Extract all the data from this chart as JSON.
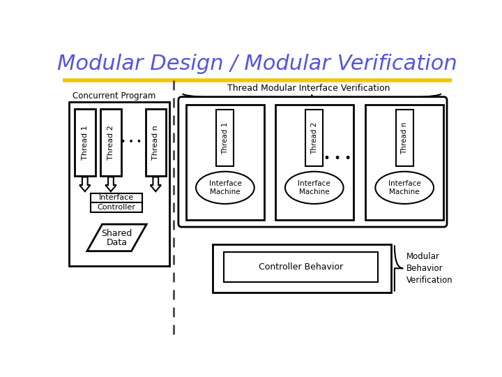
{
  "title": "Modular Design / Modular Verification",
  "title_color": "#5555dd",
  "title_fontsize": 22,
  "bg_color": "#ffffff",
  "divider_color": "#f5c400",
  "dashed_line_color": "#444444",
  "box_color": "#000000",
  "concurrent_program_label": "Concurrent Program",
  "thread_modular_label": "Thread Modular Interface Verification",
  "controller_behavior_label": "Controller Behavior",
  "modular_behavior_label": "Modular\nBehavior\nVerification"
}
